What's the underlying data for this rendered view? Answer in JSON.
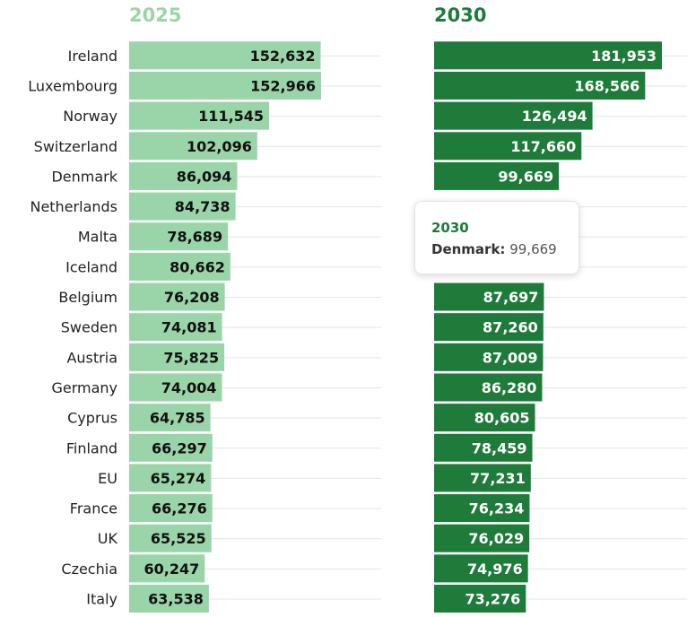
{
  "chart_data": {
    "type": "bar",
    "orientation": "horizontal",
    "categories": [
      "Ireland",
      "Luxembourg",
      "Norway",
      "Switzerland",
      "Denmark",
      "Netherlands",
      "Malta",
      "Iceland",
      "Belgium",
      "Sweden",
      "Austria",
      "Germany",
      "Cyprus",
      "Finland",
      "EU",
      "France",
      "UK",
      "Czechia",
      "Italy"
    ],
    "series": [
      {
        "name": "2025",
        "color": "#9ad4a9",
        "values": [
          152632,
          152966,
          111545,
          102096,
          86094,
          84738,
          78689,
          80662,
          76208,
          74081,
          75825,
          74004,
          64785,
          66297,
          65274,
          66276,
          65525,
          60247,
          63538
        ],
        "labels": [
          "152,632",
          "152,966",
          "111,545",
          "102,096",
          "86,094",
          "84,738",
          "78,689",
          "80,662",
          "76,208",
          "74,081",
          "75,825",
          "74,004",
          "64,785",
          "66,297",
          "65,274",
          "66,276",
          "65,525",
          "60,247",
          "63,538"
        ]
      },
      {
        "name": "2030",
        "color": "#1e7b3a",
        "values": [
          181953,
          168566,
          126494,
          117660,
          99669,
          null,
          null,
          null,
          87697,
          87260,
          87009,
          86280,
          80605,
          78459,
          77231,
          76234,
          76029,
          74976,
          73276
        ],
        "labels": [
          "181,953",
          "168,566",
          "126,494",
          "117,660",
          "99,669",
          "",
          "",
          "",
          "87,697",
          "87,260",
          "87,009",
          "86,280",
          "80,605",
          "78,459",
          "77,231",
          "76,234",
          "76,029",
          "74,976",
          "73,276"
        ]
      }
    ],
    "grid": true,
    "legend": "none"
  },
  "tooltip": {
    "title": "2030",
    "label": "Denmark:",
    "value": "99,669"
  }
}
